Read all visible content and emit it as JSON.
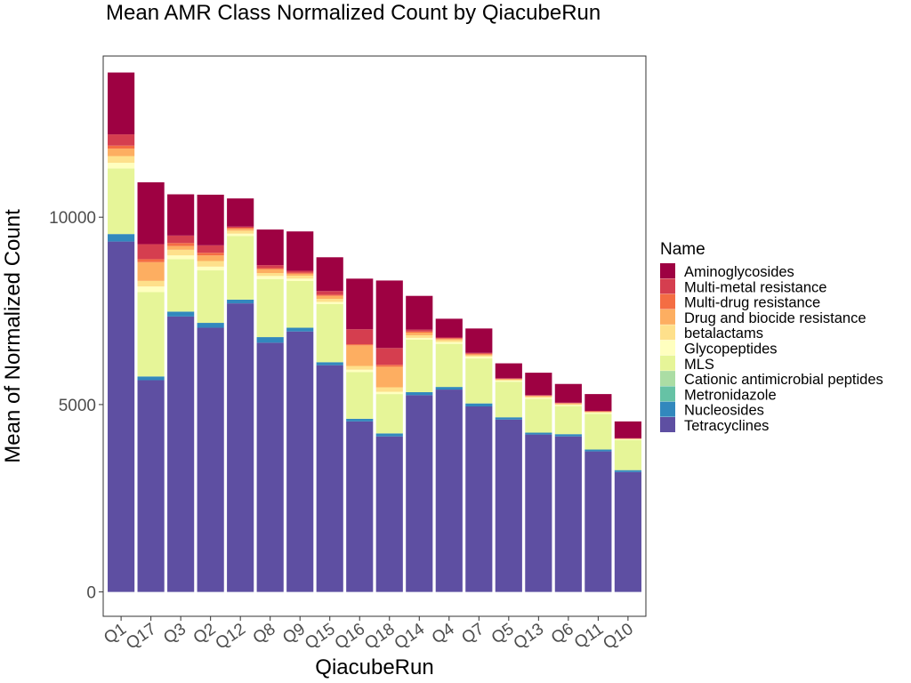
{
  "chart_data": {
    "type": "bar",
    "stacked": true,
    "title": "Mean AMR Class Normalized Count by QiacubeRun",
    "xlabel": "QiacubeRun",
    "ylabel": "Mean of Normalized Count",
    "ylim": [
      -650,
      14300
    ],
    "yticks": [
      0,
      5000,
      10000
    ],
    "grid": false,
    "legend_title": "Name",
    "legend_position": "right",
    "categories": [
      "Q1",
      "Q17",
      "Q3",
      "Q2",
      "Q12",
      "Q8",
      "Q9",
      "Q15",
      "Q16",
      "Q18",
      "Q14",
      "Q4",
      "Q7",
      "Q5",
      "Q13",
      "Q6",
      "Q11",
      "Q10"
    ],
    "series": [
      {
        "name": "Tetracyclines",
        "color": "#5e4fa2",
        "values": [
          9350,
          5650,
          7350,
          7050,
          7700,
          6650,
          6950,
          6050,
          4550,
          4150,
          5250,
          5400,
          4950,
          4600,
          4200,
          4150,
          3750,
          3200
        ]
      },
      {
        "name": "Nucleosides",
        "color": "#3288bd",
        "values": [
          200,
          100,
          130,
          130,
          100,
          150,
          100,
          80,
          70,
          80,
          80,
          70,
          80,
          60,
          50,
          60,
          50,
          50
        ]
      },
      {
        "name": "Metronidazole",
        "color": "#66c2a5",
        "values": [
          0,
          0,
          0,
          0,
          0,
          0,
          0,
          0,
          0,
          0,
          0,
          0,
          0,
          0,
          0,
          0,
          0,
          0
        ]
      },
      {
        "name": "Cationic antimicrobial peptides",
        "color": "#abdda4",
        "values": [
          0,
          0,
          0,
          0,
          0,
          0,
          0,
          0,
          0,
          0,
          0,
          0,
          0,
          0,
          0,
          0,
          0,
          0
        ]
      },
      {
        "name": "MLS",
        "color": "#e6f598",
        "values": [
          1750,
          2250,
          1400,
          1400,
          1700,
          1550,
          1250,
          1550,
          1250,
          1050,
          1400,
          1150,
          1200,
          950,
          900,
          750,
          950,
          800
        ]
      },
      {
        "name": "Glycopeptides",
        "color": "#ffffbf",
        "values": [
          150,
          150,
          100,
          100,
          60,
          80,
          60,
          60,
          60,
          60,
          50,
          50,
          50,
          30,
          30,
          30,
          30,
          20
        ]
      },
      {
        "name": "betalactams",
        "color": "#fee08b",
        "values": [
          180,
          150,
          150,
          150,
          80,
          80,
          80,
          80,
          100,
          120,
          70,
          50,
          30,
          20,
          30,
          20,
          20,
          10
        ]
      },
      {
        "name": "Drug and biocide resistance",
        "color": "#fdae61",
        "values": [
          200,
          500,
          100,
          150,
          50,
          100,
          50,
          80,
          550,
          550,
          70,
          30,
          30,
          20,
          20,
          20,
          10,
          10
        ]
      },
      {
        "name": "Multi-drug resistance",
        "color": "#f46d43",
        "values": [
          80,
          80,
          80,
          70,
          30,
          30,
          30,
          30,
          30,
          50,
          30,
          20,
          20,
          10,
          10,
          10,
          10,
          5
        ]
      },
      {
        "name": "Multi-metal resistance",
        "color": "#d53e4f",
        "values": [
          300,
          400,
          200,
          200,
          30,
          80,
          50,
          100,
          400,
          450,
          50,
          20,
          20,
          10,
          10,
          10,
          10,
          5
        ]
      },
      {
        "name": "Aminoglycosides",
        "color": "#9e0142",
        "values": [
          1650,
          1650,
          1100,
          1350,
          750,
          950,
          1050,
          900,
          1350,
          1800,
          900,
          500,
          650,
          400,
          600,
          500,
          450,
          450
        ]
      }
    ]
  }
}
